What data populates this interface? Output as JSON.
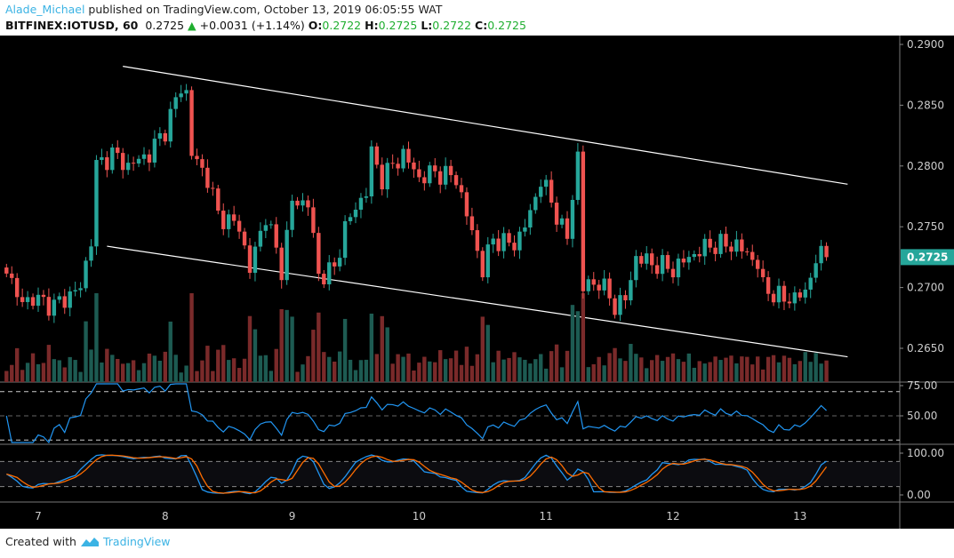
{
  "header": {
    "author": "Alade_Michael",
    "published": "published on TradingView.com, October 13, 2019 06:05:55 WAT",
    "symbol": "BITFINEX:IOTUSD, 60",
    "last": "0.2725",
    "change": "+0.0031 (+1.14%)",
    "o_label": "O:",
    "o": "0.2722",
    "h_label": "H:",
    "h": "0.2725",
    "l_label": "L:",
    "l": "0.2722",
    "c_label": "C:",
    "c": "0.2725"
  },
  "footer": {
    "created_with": "Created with",
    "brand": "TradingView"
  },
  "colors": {
    "up": "#26a69a",
    "down": "#ef5350",
    "up_vol": "#1d5b52",
    "down_vol": "#7a2a2a",
    "rsi": "#2196f3",
    "stoch_k": "#2196f3",
    "stoch_d": "#ff6d00",
    "price_label": "#26a69a"
  },
  "chart_data": {
    "type": "candlestick",
    "x_unit": "hours since Oct 7 00:00",
    "x_ticks": [
      "7",
      "8",
      "9",
      "10",
      "11",
      "12",
      "13"
    ],
    "price_ticks": [
      "0.2900",
      "0.2850",
      "0.2800",
      "0.2750",
      "0.2700",
      "0.2650"
    ],
    "ylim": [
      0.2628,
      0.2905
    ],
    "current_price_label": "0.2725",
    "close_anchors": [
      [
        -6,
        0.272
      ],
      [
        -4,
        0.269
      ],
      [
        0,
        0.269
      ],
      [
        3,
        0.2685
      ],
      [
        8,
        0.27
      ],
      [
        10,
        0.274
      ],
      [
        11,
        0.28
      ],
      [
        14,
        0.281
      ],
      [
        17,
        0.28
      ],
      [
        21,
        0.281
      ],
      [
        24,
        0.283
      ],
      [
        27,
        0.2865
      ],
      [
        28,
        0.286
      ],
      [
        29,
        0.281
      ],
      [
        32,
        0.279
      ],
      [
        34,
        0.276
      ],
      [
        38,
        0.275
      ],
      [
        40,
        0.2715
      ],
      [
        43,
        0.276
      ],
      [
        46,
        0.2715
      ],
      [
        48,
        0.277
      ],
      [
        51,
        0.277
      ],
      [
        53,
        0.271
      ],
      [
        56,
        0.2715
      ],
      [
        58,
        0.275
      ],
      [
        62,
        0.278
      ],
      [
        63,
        0.281
      ],
      [
        65,
        0.279
      ],
      [
        69,
        0.281
      ],
      [
        72,
        0.279
      ],
      [
        75,
        0.2795
      ],
      [
        79,
        0.279
      ],
      [
        81,
        0.276
      ],
      [
        84,
        0.2715
      ],
      [
        86,
        0.274
      ],
      [
        90,
        0.2735
      ],
      [
        93,
        0.276
      ],
      [
        95,
        0.279
      ],
      [
        98,
        0.276
      ],
      [
        100,
        0.274
      ],
      [
        102,
        0.281
      ],
      [
        103,
        0.27
      ],
      [
        106,
        0.2705
      ],
      [
        109,
        0.2685
      ],
      [
        111,
        0.269
      ],
      [
        113,
        0.2725
      ],
      [
        116,
        0.272
      ],
      [
        120,
        0.2715
      ],
      [
        123,
        0.2725
      ],
      [
        127,
        0.2735
      ],
      [
        132,
        0.2735
      ],
      [
        136,
        0.272
      ],
      [
        137,
        0.27
      ],
      [
        141,
        0.269
      ],
      [
        145,
        0.2695
      ],
      [
        147,
        0.2725
      ],
      [
        149,
        0.2725
      ]
    ],
    "trendlines": [
      {
        "name": "channel-upper",
        "from": [
          16,
          0.2882
        ],
        "to": [
          153,
          0.2785
        ]
      },
      {
        "name": "channel-lower",
        "from": [
          13,
          0.2734
        ],
        "to": [
          153,
          0.2643
        ]
      }
    ],
    "rsi": {
      "levels": [
        "75.00",
        "50.00"
      ],
      "dashed": [
        70,
        50,
        30
      ]
    },
    "stoch": {
      "levels": [
        "100.00",
        "0.00"
      ],
      "dashed": [
        80,
        20
      ]
    }
  }
}
